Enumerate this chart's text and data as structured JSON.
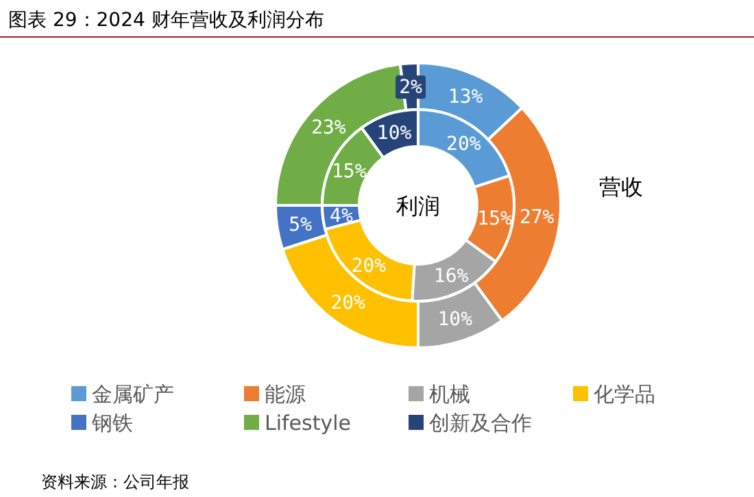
{
  "chart_data": {
    "type": "donut",
    "title": "图表 29：2024 财年营收及利润分布",
    "categories": [
      "金属矿产",
      "能源",
      "机械",
      "化学品",
      "钢铁",
      "Lifestyle",
      "创新及合作"
    ],
    "colors": [
      "#5b9bd5",
      "#ed7d31",
      "#a5a5a5",
      "#ffc000",
      "#4472c4",
      "#70ad47",
      "#264478"
    ],
    "series": [
      {
        "name": "营收",
        "values": [
          13,
          27,
          10,
          20,
          5,
          23,
          2
        ],
        "value_labels": [
          "13%",
          "27%",
          "10%",
          "20%",
          "5%",
          "23%",
          "2%"
        ]
      },
      {
        "name": "利润",
        "values": [
          20,
          15,
          16,
          20,
          4,
          15,
          10
        ],
        "value_labels": [
          "20%",
          "15%",
          "16%",
          "20%",
          "4%",
          "15%",
          "10%"
        ]
      }
    ],
    "legend": "bottom",
    "annotations": [
      "资料来源：公司年报"
    ]
  }
}
